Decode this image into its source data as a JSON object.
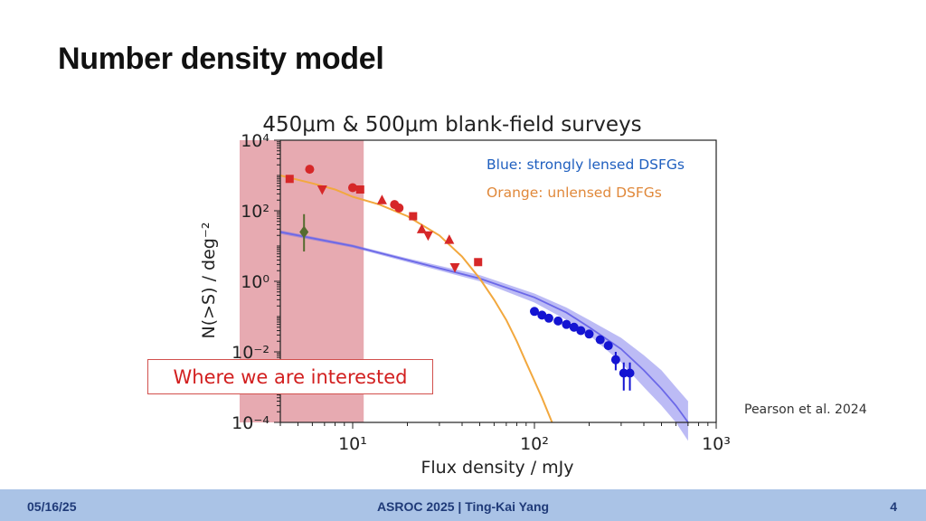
{
  "slide": {
    "title": "Number density model",
    "callout": "Where we are interested",
    "citation": "Pearson et al. 2024"
  },
  "footer": {
    "date": "05/16/25",
    "center": "ASROC 2025 | Ting-Kai Yang",
    "page": "4"
  },
  "chart_data": {
    "type": "scatter",
    "title": "450μm & 500μm blank-field surveys",
    "xlabel": "Flux density / mJy",
    "ylabel": "N(>S) / deg⁻²",
    "xscale": "log",
    "yscale": "log",
    "xlim": [
      4,
      1000
    ],
    "ylim": [
      0.0001,
      10000
    ],
    "xticks": [
      {
        "value": 10,
        "label": "10¹"
      },
      {
        "value": 100,
        "label": "10²"
      },
      {
        "value": 1000,
        "label": "10³"
      }
    ],
    "yticks": [
      {
        "value": 10000,
        "label": "10⁴"
      },
      {
        "value": 100,
        "label": "10²"
      },
      {
        "value": 1,
        "label": "10⁰"
      },
      {
        "value": 0.01,
        "label": "10⁻²"
      },
      {
        "value": 0.0001,
        "label": "10⁻⁴"
      }
    ],
    "legend_placement": "top-right",
    "legend": [
      {
        "text": "Blue: strongly lensed DSFGs",
        "color": "#1f5fbf"
      },
      {
        "text": "Orange: unlensed DSFGs",
        "color": "#e0883a"
      }
    ],
    "highlight_region": {
      "x_range": [
        4,
        11.5
      ],
      "color": "#e4a1a8"
    },
    "series": [
      {
        "name": "Orange: unlensed DSFGs",
        "kind": "model-line",
        "color": "#f2a83e",
        "x": [
          4,
          6,
          8,
          10,
          14,
          20,
          30,
          40,
          50,
          60,
          70,
          80,
          90,
          100,
          110,
          125
        ],
        "y": [
          1000,
          600,
          400,
          250,
          150,
          70,
          20,
          5,
          1.2,
          0.3,
          0.08,
          0.02,
          0.005,
          0.0015,
          0.0005,
          0.0001
        ]
      },
      {
        "name": "Blue: strongly lensed DSFGs",
        "kind": "model-band",
        "color": "#6b68e8",
        "x": [
          4,
          10,
          20,
          50,
          100,
          150,
          200,
          300,
          400,
          500,
          600,
          700
        ],
        "y": [
          25,
          10,
          4,
          1.2,
          0.35,
          0.13,
          0.05,
          0.012,
          0.003,
          0.0009,
          0.0003,
          0.0001
        ],
        "y_low": [
          22,
          9,
          3.5,
          1.0,
          0.25,
          0.08,
          0.03,
          0.005,
          0.001,
          0.0003,
          0.0001,
          3e-05
        ],
        "y_high": [
          28,
          11,
          4.5,
          1.5,
          0.45,
          0.18,
          0.08,
          0.025,
          0.008,
          0.003,
          0.001,
          0.0004
        ]
      },
      {
        "name": "",
        "kind": "points",
        "color": "#d62728",
        "points": [
          {
            "x": 4.5,
            "y": 800,
            "marker": "square"
          },
          {
            "x": 5.8,
            "y": 1500,
            "marker": "circle"
          },
          {
            "x": 6.8,
            "y": 400,
            "marker": "triangle-down"
          },
          {
            "x": 10.0,
            "y": 450,
            "marker": "circle"
          },
          {
            "x": 11.0,
            "y": 400,
            "marker": "square"
          },
          {
            "x": 14.5,
            "y": 200,
            "marker": "triangle-up"
          },
          {
            "x": 17.0,
            "y": 150,
            "marker": "circle"
          },
          {
            "x": 18.0,
            "y": 120,
            "marker": "circle"
          },
          {
            "x": 21.5,
            "y": 70,
            "marker": "square"
          },
          {
            "x": 24.0,
            "y": 30,
            "marker": "triangle-up"
          },
          {
            "x": 26.0,
            "y": 20,
            "marker": "triangle-down"
          },
          {
            "x": 34.0,
            "y": 15,
            "marker": "triangle-up"
          },
          {
            "x": 36.5,
            "y": 2.5,
            "marker": "triangle-down"
          },
          {
            "x": 49.0,
            "y": 3.5,
            "marker": "square"
          }
        ]
      },
      {
        "name": "",
        "kind": "points",
        "color": "#556b2f",
        "points": [
          {
            "x": 5.4,
            "y": 25,
            "marker": "diamond",
            "err": [
              7,
              80
            ]
          }
        ]
      },
      {
        "name": "",
        "kind": "points",
        "color": "#1414d2",
        "points": [
          {
            "x": 100,
            "y": 0.14
          },
          {
            "x": 110,
            "y": 0.11
          },
          {
            "x": 120,
            "y": 0.09
          },
          {
            "x": 135,
            "y": 0.075
          },
          {
            "x": 150,
            "y": 0.06
          },
          {
            "x": 165,
            "y": 0.05
          },
          {
            "x": 180,
            "y": 0.04
          },
          {
            "x": 200,
            "y": 0.032
          },
          {
            "x": 230,
            "y": 0.022
          },
          {
            "x": 255,
            "y": 0.015
          },
          {
            "x": 280,
            "y": 0.006,
            "err": [
              0.003,
              0.01
            ]
          },
          {
            "x": 310,
            "y": 0.0025,
            "err": [
              0.0008,
              0.005
            ]
          },
          {
            "x": 335,
            "y": 0.0025,
            "err": [
              0.0008,
              0.005
            ]
          }
        ]
      }
    ]
  }
}
